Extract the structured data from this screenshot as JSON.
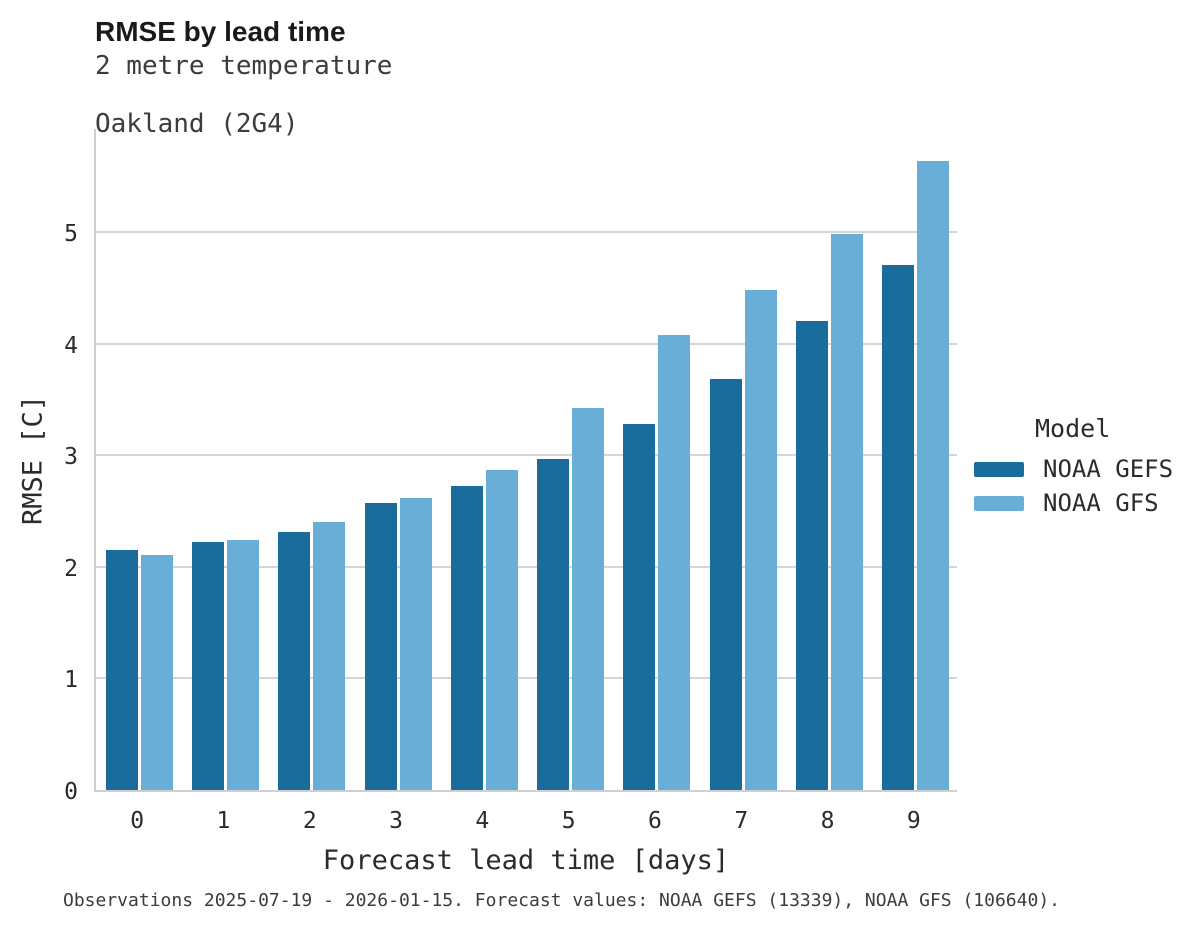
{
  "header": {
    "title": "RMSE by lead time",
    "subtitle_line1": "2 metre temperature",
    "subtitle_line2": "Oakland (2G4)"
  },
  "legend": {
    "title": "Model",
    "items": [
      {
        "label": "NOAA GEFS",
        "color": "#1a6c9c"
      },
      {
        "label": "NOAA GFS",
        "color": "#68aed6"
      }
    ]
  },
  "footer": {
    "caption": "Observations 2025-07-19 - 2026-01-15. Forecast values: NOAA GEFS (13339), NOAA GFS (106640)."
  },
  "chart_data": {
    "type": "bar",
    "title": "RMSE by lead time",
    "subtitle": [
      "2 metre temperature",
      "Oakland (2G4)"
    ],
    "xlabel": "Forecast lead time [days]",
    "ylabel": "RMSE [C]",
    "categories": [
      "0",
      "1",
      "2",
      "3",
      "4",
      "5",
      "6",
      "7",
      "8",
      "9"
    ],
    "series": [
      {
        "name": "NOAA GEFS",
        "color": "#1a6c9c",
        "values": [
          2.15,
          2.22,
          2.31,
          2.57,
          2.72,
          2.97,
          3.28,
          3.68,
          4.2,
          4.7
        ]
      },
      {
        "name": "NOAA GFS",
        "color": "#68aed6",
        "values": [
          2.11,
          2.24,
          2.4,
          2.62,
          2.87,
          3.42,
          4.08,
          4.48,
          4.98,
          5.64
        ]
      }
    ],
    "ylim": [
      0,
      5.94
    ],
    "yticks": [
      0,
      1,
      2,
      3,
      4,
      5
    ],
    "grid": true,
    "legend_title": "Model",
    "legend_position": "right"
  }
}
